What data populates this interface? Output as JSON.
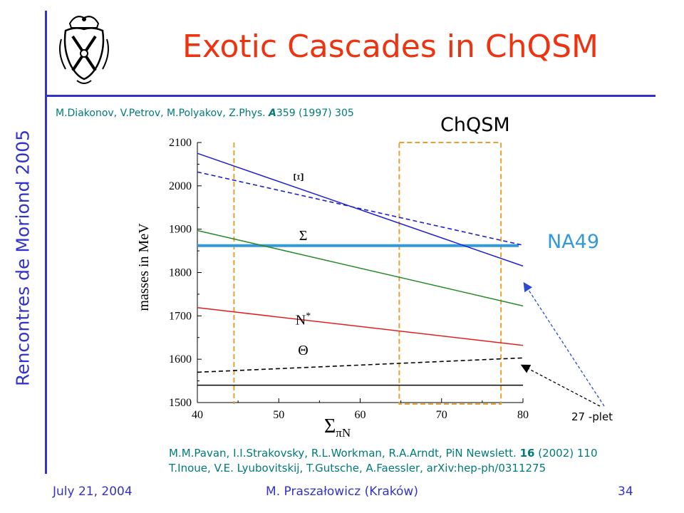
{
  "slide": {
    "title": "Exotic Cascades in ChQSM",
    "side_label": "Rencontres de Moriond 2005",
    "ref_top_pre": "M.Diakonov, V.Petrov, M.Polyakov, Z.Phys. ",
    "ref_top_bold": "A",
    "ref_top_post": "359 (1997) 305",
    "label_chqsm": "ChQSM",
    "label_na49": "NA49",
    "label_plet": "27 -plet",
    "ref_line1_pre": "M.M.Pavan, I.I.Strakovsky, R.L.Workman, R.A.Arndt, PiN Newslett. ",
    "ref_line1_bold": "16",
    "ref_line1_post": " (2002) 110",
    "ref_line2": "T.Inoue, V.E. Lyubovitskij, T.Gutsche, A.Faessler, arXiv:hep-ph/0311275",
    "footer_left": "July 21, 2004",
    "footer_center": "M. Praszałowicz (Kraków)",
    "footer_right": "34"
  },
  "chart_data": {
    "type": "line",
    "xlabel_main": "Σ",
    "xlabel_sub": "πN",
    "ylabel": "masses in MeV",
    "xlim": [
      40,
      80
    ],
    "ylim": [
      1500,
      2100
    ],
    "xticks": [
      40,
      50,
      60,
      70,
      80
    ],
    "yticks": [
      1500,
      1600,
      1700,
      1800,
      1900,
      2000,
      2100
    ],
    "series": [
      {
        "name": "Ξ",
        "style": "solid",
        "color": "#1f1fd0",
        "x": [
          40,
          80
        ],
        "y": [
          2075,
          1815
        ],
        "label_x": 53,
        "label_y": 2020
      },
      {
        "name": "",
        "style": "dashed",
        "color": "#1f1fd0",
        "x": [
          40,
          80
        ],
        "y": [
          2032,
          1863
        ],
        "label_x": null,
        "label_y": null
      },
      {
        "name": "Σ",
        "style": "solid",
        "color": "#2a8a2a",
        "x": [
          40,
          80
        ],
        "y": [
          1897,
          1723
        ],
        "label_x": 53,
        "label_y": 1875
      },
      {
        "name": "N*",
        "style": "solid",
        "color": "#e02020",
        "x": [
          40,
          80
        ],
        "y": [
          1719,
          1632
        ],
        "label_x": 53,
        "label_y": 1680
      },
      {
        "name": "Θ",
        "style": "solid",
        "color": "#000000",
        "x": [
          40,
          80
        ],
        "y": [
          1540,
          1540
        ],
        "label_x": 53,
        "label_y": 1610
      },
      {
        "name": "",
        "style": "dashed",
        "color": "#000000",
        "x": [
          40,
          80
        ],
        "y": [
          1570,
          1603
        ],
        "label_x": null,
        "label_y": null
      }
    ],
    "na49_level": 1862,
    "na49_color": "#3399dd",
    "bands": [
      {
        "x_from": 44.5,
        "x_to": 44.5,
        "style": "single"
      },
      {
        "x_from": 64.8,
        "x_to": 77.3,
        "style": "box"
      }
    ],
    "band_color": "#e8a030"
  }
}
